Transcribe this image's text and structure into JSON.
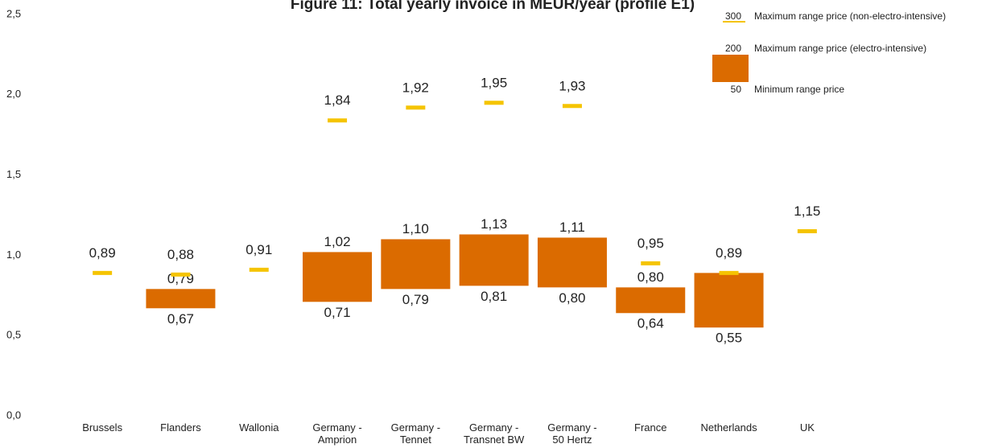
{
  "chart_data": {
    "type": "floating-bar",
    "title": "Figure 11: Total yearly invoice in MEUR/year (profile E1)",
    "categories": [
      "Brussels",
      "Flanders",
      "Wallonia",
      "Germany -\nAmprion",
      "Germany -\nTennet",
      "Germany -\nTransnet BW",
      "Germany -\n50 Hertz",
      "France",
      "Netherlands",
      "UK"
    ],
    "series": [
      {
        "name": "Maximum range price (non-electro-intensive)",
        "color": "#f5c400",
        "legend_tick": 300,
        "values": [
          0.89,
          0.88,
          0.91,
          1.84,
          1.92,
          1.95,
          1.93,
          0.95,
          0.89,
          1.15
        ],
        "value_labels": [
          "0,89",
          "0,88",
          "0,91",
          "1,84",
          "1,92",
          "1,95",
          "1,93",
          "0,95",
          "0,89",
          "1,15"
        ]
      },
      {
        "name": "Maximum range price (electro-intensive)",
        "color": "#db6b00",
        "legend_tick": 200,
        "values": [
          null,
          0.79,
          null,
          1.02,
          1.1,
          1.13,
          1.11,
          0.8,
          0.89,
          null
        ],
        "value_labels": [
          null,
          "0,79",
          null,
          "1,02",
          "1,10",
          "1,13",
          "1,11",
          "0,80",
          null,
          null
        ]
      },
      {
        "name": "Minimum range price",
        "color": "#db6b00",
        "legend_tick": 50,
        "values": [
          null,
          0.67,
          null,
          0.71,
          0.79,
          0.81,
          0.8,
          0.64,
          0.55,
          null
        ],
        "value_labels": [
          null,
          "0,67",
          null,
          "0,71",
          "0,79",
          "0,81",
          "0,80",
          "0,64",
          "0,55",
          null
        ]
      }
    ],
    "ylim": [
      0,
      2.5
    ],
    "yticks": [
      {
        "value": 0,
        "label": "0,0"
      },
      {
        "value": 0.5,
        "label": "0,5"
      },
      {
        "value": 1,
        "label": "1,0"
      },
      {
        "value": 1.5,
        "label": "1,5"
      },
      {
        "value": 2,
        "label": "2,0"
      },
      {
        "value": 2.5,
        "label": "2,5"
      }
    ],
    "grid": false
  }
}
